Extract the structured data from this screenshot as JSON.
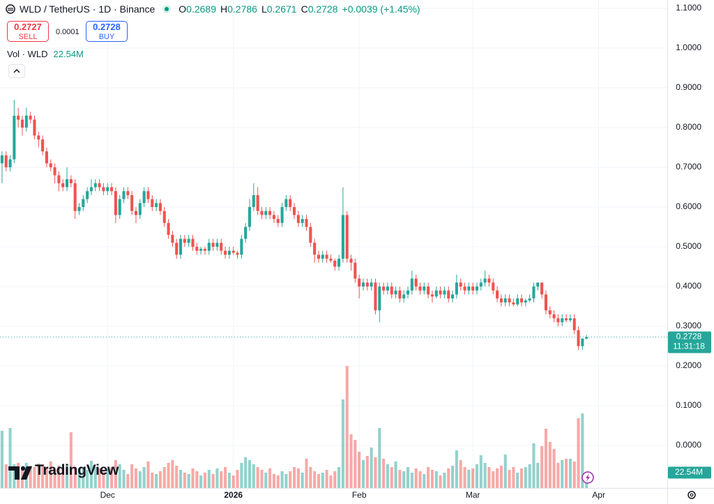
{
  "header": {
    "symbol": "WLD / TetherUS · 1D · Binance",
    "o": "O",
    "h": "H",
    "l": "L",
    "c": "C",
    "change": "+0.0039 (+1.45%)"
  },
  "trade": {
    "sell_price": "0.2727",
    "sell": "SELL",
    "spread": "0.0001",
    "buy_price": "0.2728",
    "buy": "BUY"
  },
  "countdown": "11:31:18",
  "logo": "TradingView",
  "chart_data": {
    "type": "candlestick",
    "up_color": "#26a69a",
    "down_color": "#ef5350",
    "grid": true,
    "ylim": [
      -0.107,
      1.1211
    ],
    "yticks": [
      {
        "value": 0,
        "label": "0.0000"
      },
      {
        "value": 0.1,
        "label": "0.1000"
      },
      {
        "value": 0.2,
        "label": "0.2000"
      },
      {
        "value": 0.3,
        "label": "0.3000"
      },
      {
        "value": 0.4,
        "label": "0.4000"
      },
      {
        "value": 0.5,
        "label": "0.5000"
      },
      {
        "value": 0.6,
        "label": "0.6000"
      },
      {
        "value": 0.7,
        "label": "0.7000"
      },
      {
        "value": 0.8,
        "label": "0.8000"
      },
      {
        "value": 0.9,
        "label": "0.9000"
      },
      {
        "value": 1,
        "label": "1.0000"
      },
      {
        "value": 1.1,
        "label": "1.1000"
      }
    ],
    "xlim": [
      -0.5,
      163.9
    ],
    "xticks": [
      {
        "value": 26,
        "label": "Dec"
      },
      {
        "value": 57,
        "label": "2026"
      },
      {
        "value": 88,
        "label": "Feb"
      },
      {
        "value": 116,
        "label": "Mar"
      },
      {
        "value": 147,
        "label": "Apr"
      }
    ],
    "open": [
      0.71,
      0.73,
      0.7,
      0.72,
      0.83,
      0.82,
      0.8,
      0.83,
      0.82,
      0.78,
      0.77,
      0.74,
      0.71,
      0.7,
      0.68,
      0.66,
      0.65,
      0.67,
      0.66,
      0.59,
      0.6,
      0.62,
      0.64,
      0.65,
      0.66,
      0.65,
      0.64,
      0.65,
      0.64,
      0.58,
      0.62,
      0.64,
      0.63,
      0.59,
      0.58,
      0.61,
      0.64,
      0.62,
      0.6,
      0.61,
      0.59,
      0.56,
      0.53,
      0.51,
      0.48,
      0.52,
      0.51,
      0.52,
      0.5,
      0.49,
      0.495,
      0.49,
      0.51,
      0.5,
      0.51,
      0.49,
      0.48,
      0.49,
      0.485,
      0.48,
      0.52,
      0.55,
      0.6,
      0.63,
      0.59,
      0.58,
      0.59,
      0.58,
      0.57,
      0.56,
      0.6,
      0.62,
      0.6,
      0.58,
      0.56,
      0.57,
      0.55,
      0.51,
      0.48,
      0.47,
      0.48,
      0.47,
      0.465,
      0.45,
      0.47,
      0.58,
      0.47,
      0.46,
      0.42,
      0.4,
      0.41,
      0.4,
      0.41,
      0.34,
      0.4,
      0.39,
      0.4,
      0.38,
      0.39,
      0.37,
      0.38,
      0.39,
      0.42,
      0.4,
      0.39,
      0.4,
      0.38,
      0.375,
      0.39,
      0.38,
      0.39,
      0.37,
      0.38,
      0.41,
      0.4,
      0.39,
      0.4,
      0.39,
      0.4,
      0.41,
      0.42,
      0.41,
      0.39,
      0.37,
      0.36,
      0.37,
      0.36,
      0.355,
      0.37,
      0.36,
      0.365,
      0.37,
      0.4,
      0.41,
      0.38,
      0.34,
      0.33,
      0.32,
      0.31,
      0.32,
      0.315,
      0.32,
      0.29,
      0.25,
      0.2689
    ],
    "high": [
      0.74,
      0.74,
      0.73,
      0.87,
      0.85,
      0.83,
      0.85,
      0.84,
      0.83,
      0.79,
      0.78,
      0.75,
      0.72,
      0.71,
      0.69,
      0.67,
      0.7,
      0.68,
      0.67,
      0.61,
      0.63,
      0.65,
      0.67,
      0.67,
      0.67,
      0.66,
      0.66,
      0.66,
      0.65,
      0.63,
      0.65,
      0.65,
      0.64,
      0.6,
      0.62,
      0.65,
      0.65,
      0.63,
      0.62,
      0.62,
      0.6,
      0.57,
      0.54,
      0.52,
      0.53,
      0.53,
      0.53,
      0.53,
      0.51,
      0.5,
      0.5,
      0.52,
      0.52,
      0.52,
      0.52,
      0.5,
      0.5,
      0.5,
      0.49,
      0.53,
      0.56,
      0.62,
      0.66,
      0.65,
      0.6,
      0.6,
      0.6,
      0.59,
      0.58,
      0.61,
      0.63,
      0.63,
      0.61,
      0.59,
      0.58,
      0.58,
      0.56,
      0.52,
      0.49,
      0.49,
      0.49,
      0.48,
      0.47,
      0.48,
      0.65,
      0.59,
      0.48,
      0.47,
      0.43,
      0.42,
      0.42,
      0.42,
      0.42,
      0.41,
      0.41,
      0.41,
      0.41,
      0.4,
      0.4,
      0.39,
      0.4,
      0.44,
      0.43,
      0.41,
      0.41,
      0.41,
      0.39,
      0.4,
      0.4,
      0.4,
      0.4,
      0.39,
      0.43,
      0.42,
      0.41,
      0.41,
      0.41,
      0.41,
      0.42,
      0.44,
      0.43,
      0.42,
      0.4,
      0.38,
      0.38,
      0.38,
      0.37,
      0.38,
      0.38,
      0.37,
      0.38,
      0.41,
      0.41,
      0.41,
      0.39,
      0.35,
      0.34,
      0.33,
      0.33,
      0.33,
      0.33,
      0.33,
      0.3,
      0.27,
      0.2786
    ],
    "low": [
      0.66,
      0.69,
      0.69,
      0.71,
      0.8,
      0.78,
      0.79,
      0.81,
      0.77,
      0.75,
      0.73,
      0.7,
      0.69,
      0.66,
      0.64,
      0.64,
      0.64,
      0.65,
      0.57,
      0.58,
      0.59,
      0.61,
      0.63,
      0.64,
      0.64,
      0.63,
      0.63,
      0.63,
      0.56,
      0.57,
      0.61,
      0.62,
      0.58,
      0.56,
      0.57,
      0.6,
      0.61,
      0.59,
      0.59,
      0.58,
      0.55,
      0.52,
      0.5,
      0.47,
      0.47,
      0.5,
      0.5,
      0.49,
      0.48,
      0.48,
      0.48,
      0.48,
      0.49,
      0.49,
      0.48,
      0.47,
      0.47,
      0.48,
      0.47,
      0.47,
      0.51,
      0.54,
      0.59,
      0.58,
      0.57,
      0.57,
      0.57,
      0.56,
      0.55,
      0.55,
      0.59,
      0.59,
      0.57,
      0.55,
      0.55,
      0.54,
      0.5,
      0.46,
      0.46,
      0.46,
      0.46,
      0.46,
      0.44,
      0.44,
      0.46,
      0.46,
      0.44,
      0.41,
      0.37,
      0.39,
      0.39,
      0.39,
      0.33,
      0.31,
      0.38,
      0.38,
      0.37,
      0.37,
      0.36,
      0.36,
      0.37,
      0.38,
      0.39,
      0.38,
      0.38,
      0.37,
      0.36,
      0.37,
      0.37,
      0.37,
      0.36,
      0.36,
      0.37,
      0.39,
      0.38,
      0.38,
      0.38,
      0.38,
      0.39,
      0.4,
      0.4,
      0.38,
      0.36,
      0.35,
      0.35,
      0.35,
      0.35,
      0.35,
      0.35,
      0.35,
      0.36,
      0.36,
      0.39,
      0.37,
      0.33,
      0.32,
      0.31,
      0.3,
      0.3,
      0.31,
      0.31,
      0.28,
      0.24,
      0.24,
      0.2671
    ],
    "close": [
      0.73,
      0.7,
      0.72,
      0.83,
      0.82,
      0.8,
      0.83,
      0.82,
      0.78,
      0.77,
      0.74,
      0.71,
      0.7,
      0.68,
      0.66,
      0.65,
      0.67,
      0.66,
      0.59,
      0.6,
      0.62,
      0.64,
      0.65,
      0.66,
      0.65,
      0.64,
      0.65,
      0.64,
      0.58,
      0.62,
      0.64,
      0.63,
      0.59,
      0.58,
      0.61,
      0.64,
      0.62,
      0.6,
      0.61,
      0.59,
      0.56,
      0.53,
      0.51,
      0.48,
      0.52,
      0.51,
      0.52,
      0.5,
      0.49,
      0.495,
      0.49,
      0.51,
      0.5,
      0.51,
      0.49,
      0.48,
      0.49,
      0.485,
      0.48,
      0.52,
      0.55,
      0.6,
      0.63,
      0.59,
      0.58,
      0.59,
      0.58,
      0.57,
      0.56,
      0.6,
      0.62,
      0.6,
      0.58,
      0.56,
      0.57,
      0.55,
      0.51,
      0.48,
      0.47,
      0.48,
      0.47,
      0.465,
      0.45,
      0.47,
      0.58,
      0.47,
      0.46,
      0.42,
      0.4,
      0.41,
      0.4,
      0.41,
      0.34,
      0.4,
      0.39,
      0.4,
      0.38,
      0.39,
      0.37,
      0.38,
      0.39,
      0.42,
      0.4,
      0.39,
      0.4,
      0.38,
      0.375,
      0.39,
      0.38,
      0.39,
      0.37,
      0.38,
      0.41,
      0.4,
      0.39,
      0.4,
      0.39,
      0.4,
      0.41,
      0.42,
      0.41,
      0.39,
      0.37,
      0.36,
      0.37,
      0.36,
      0.355,
      0.37,
      0.36,
      0.365,
      0.37,
      0.4,
      0.41,
      0.38,
      0.34,
      0.33,
      0.32,
      0.31,
      0.32,
      0.315,
      0.32,
      0.29,
      0.25,
      0.2689,
      0.2728
    ],
    "volume": {
      "name": "Vol · WLD",
      "vlim": [
        0,
        700
      ],
      "values": [
        82,
        34,
        86,
        34,
        36,
        30,
        36,
        32,
        30,
        35,
        34,
        30,
        38,
        28,
        32,
        30,
        34,
        80,
        30,
        28,
        30,
        26,
        39,
        30,
        28,
        25,
        28,
        30,
        40,
        34,
        26,
        20,
        34,
        28,
        24,
        30,
        38,
        22,
        20,
        24,
        30,
        36,
        40,
        32,
        26,
        22,
        20,
        28,
        24,
        18,
        22,
        26,
        20,
        28,
        24,
        30,
        22,
        18,
        26,
        36,
        44,
        40,
        34,
        30,
        26,
        22,
        28,
        20,
        18,
        24,
        20,
        24,
        30,
        28,
        22,
        42,
        30,
        24,
        20,
        22,
        26,
        18,
        24,
        30,
        127,
        175,
        77,
        69,
        52,
        40,
        46,
        58,
        44,
        86,
        42,
        34,
        30,
        38,
        26,
        24,
        30,
        22,
        28,
        24,
        20,
        30,
        26,
        24,
        18,
        22,
        28,
        32,
        54,
        40,
        30,
        26,
        28,
        34,
        47,
        36,
        30,
        24,
        28,
        32,
        48,
        26,
        30,
        22,
        28,
        30,
        34,
        64,
        36,
        60,
        85,
        66,
        56,
        36,
        40,
        42,
        42,
        38,
        100,
        107,
        22.54
      ]
    },
    "volume_label": "22.54M"
  }
}
